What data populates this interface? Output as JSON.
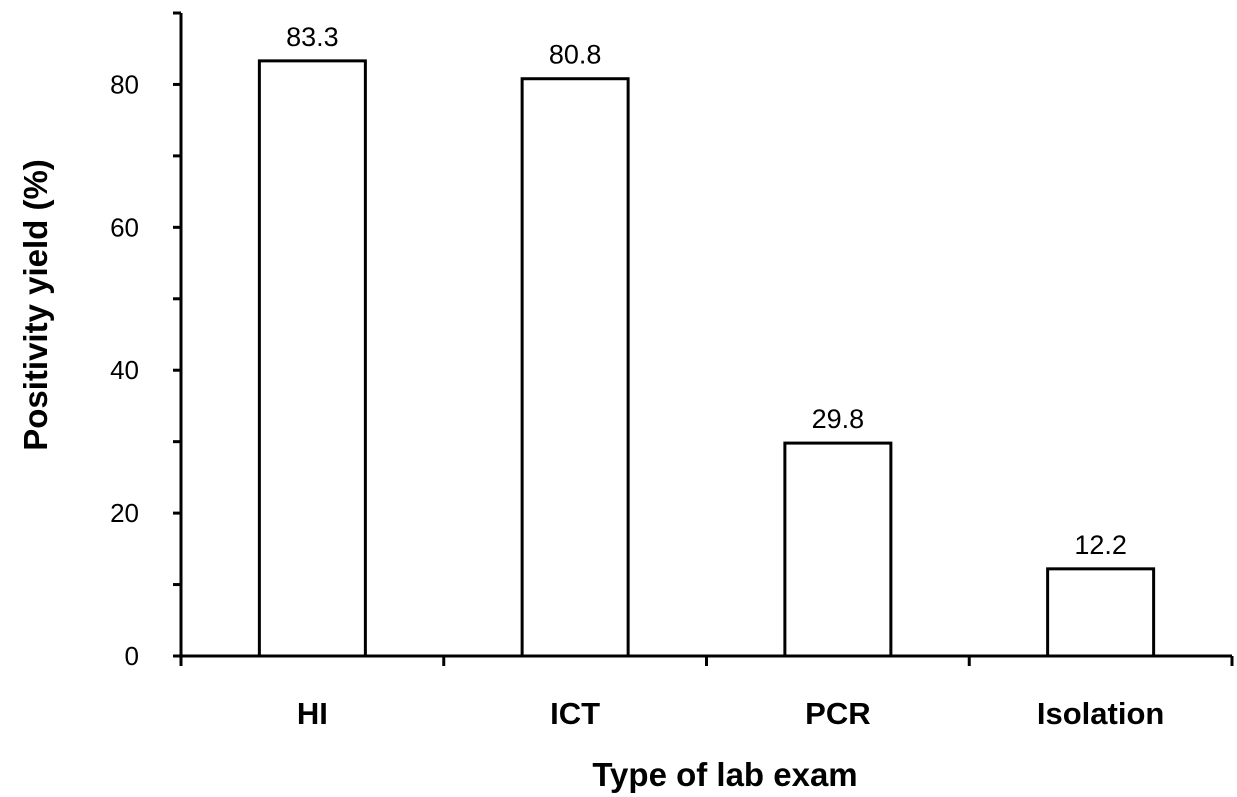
{
  "chart_data": {
    "type": "bar",
    "title": "",
    "xlabel": "Type of lab exam",
    "ylabel": "Positivity yield (%)",
    "categories": [
      "HI",
      "ICT",
      "PCR",
      "Isolation"
    ],
    "values": [
      83.3,
      80.8,
      29.8,
      12.2
    ],
    "data_labels": [
      "83.3",
      "80.8",
      "29.8",
      "12.2"
    ],
    "ylim": [
      0,
      90
    ],
    "yticks": [
      0,
      20,
      40,
      60,
      80
    ],
    "yticks_minor": [
      10,
      30,
      50,
      70,
      90
    ],
    "grid": false,
    "legend": "none",
    "colors": {
      "bar_fill": "#ffffff",
      "bar_stroke": "#000000",
      "axis": "#000000"
    }
  }
}
